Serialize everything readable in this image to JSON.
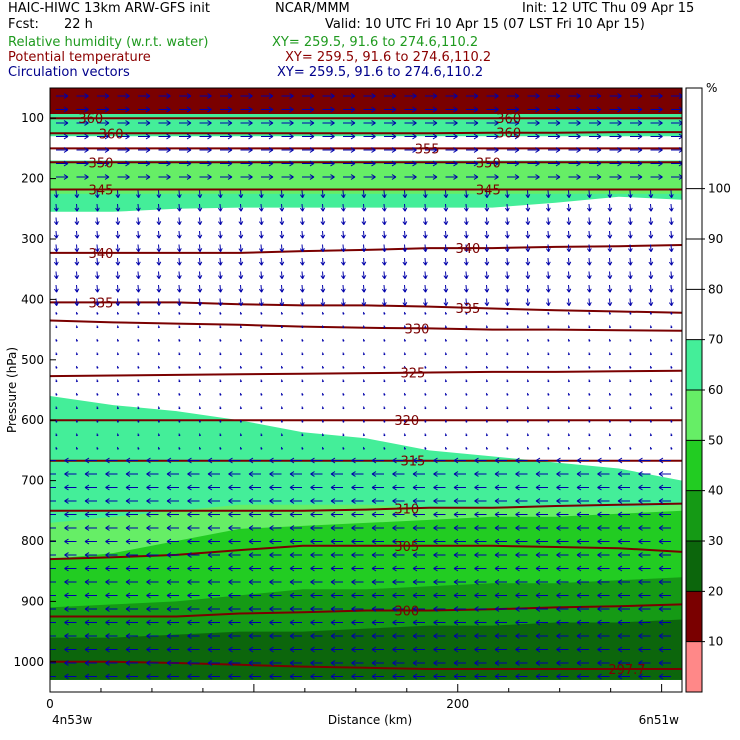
{
  "header": {
    "left1": "HAIC-HIWC 13km ARW-GFS init",
    "center1": "NCAR/MMM",
    "right1": "Init: 12 UTC Thu 09 Apr 15",
    "left2": "Fcst:",
    "left2b": "22 h",
    "right2": "Valid: 10 UTC Fri 10 Apr 15 (07 LST Fri 10 Apr 15)",
    "fields": [
      {
        "name": "Relative humidity (w.r.t. water)",
        "xy": "XY= 259.5, 91.6 to 274.6,110.2",
        "color": "#1f9a1f"
      },
      {
        "name": "Potential temperature",
        "xy": "XY= 259.5, 91.6 to 274.6,110.2",
        "color": "#8b0000"
      },
      {
        "name": "Circulation vectors",
        "xy": "XY= 259.5, 91.6 to 274.6,110.2",
        "color": "#00008b"
      }
    ]
  },
  "chart_data": {
    "type": "heatmap",
    "xlabel": "Distance (km)",
    "ylabel": "Pressure (hPa)",
    "xlim": [
      0,
      310
    ],
    "ylim": [
      1050,
      50
    ],
    "x_ticks": [
      0,
      200
    ],
    "y_ticks": [
      100,
      200,
      300,
      400,
      500,
      600,
      700,
      800,
      900,
      1000
    ],
    "x_endpoints": {
      "left": "4n53w",
      "right": "6n51w"
    },
    "colorbar": {
      "unit": "%",
      "levels": [
        10,
        20,
        30,
        40,
        50,
        60,
        70,
        80,
        90,
        100
      ],
      "colors": [
        "#ffffff",
        "#ffffff",
        "#ffffff",
        "#ffffff",
        "#ffffff",
        "#44ee99",
        "#66ee66",
        "#22cc22",
        "#159a15",
        "#0c660c",
        "#7a0000",
        "#ff8888"
      ]
    },
    "rh_bands": [
      {
        "color": "#7a0000",
        "top": [
          50,
          50,
          50,
          50,
          50,
          50,
          50,
          50,
          50,
          50,
          50
        ],
        "bottom": [
          93,
          93,
          93,
          93,
          93,
          93,
          93,
          93,
          93,
          93,
          93
        ]
      },
      {
        "color": "#44ee99",
        "top": [
          93,
          93,
          93,
          93,
          93,
          93,
          93,
          93,
          93,
          93,
          93
        ],
        "bottom": [
          130,
          130,
          130,
          130,
          130,
          130,
          130,
          130,
          130,
          130,
          130
        ]
      },
      {
        "color": "#44ee99",
        "top": [
          170,
          170,
          170,
          170,
          170,
          170,
          170,
          170,
          170,
          170,
          170
        ],
        "bottom": [
          255,
          255,
          250,
          248,
          248,
          248,
          248,
          248,
          240,
          230,
          235
        ]
      },
      {
        "color": "#66ee66",
        "top": [
          175,
          175,
          175,
          175,
          175,
          175,
          175,
          175,
          175,
          175,
          175
        ],
        "bottom": [
          225,
          225,
          225,
          225,
          225,
          225,
          225,
          225,
          225,
          225,
          225
        ]
      },
      {
        "color": "#44ee99",
        "top": [
          560,
          575,
          585,
          600,
          620,
          630,
          650,
          660,
          670,
          680,
          700
        ],
        "bottom": [
          1030,
          1030,
          1030,
          1030,
          1030,
          1030,
          1030,
          1030,
          1030,
          1030,
          1030
        ]
      },
      {
        "color": "#66ee66",
        "top": [
          770,
          760,
          750,
          740,
          740,
          740,
          745,
          745,
          745,
          745,
          740
        ],
        "bottom": [
          1030,
          1030,
          1030,
          1030,
          1030,
          1030,
          1030,
          1030,
          1030,
          1030,
          1030
        ]
      },
      {
        "color": "#22cc22",
        "top": [
          830,
          820,
          800,
          780,
          775,
          770,
          765,
          760,
          760,
          755,
          750
        ],
        "bottom": [
          1030,
          1030,
          1030,
          1030,
          1030,
          1030,
          1030,
          1030,
          1030,
          1030,
          1030
        ]
      },
      {
        "color": "#159a15",
        "top": [
          910,
          905,
          900,
          890,
          880,
          880,
          875,
          870,
          870,
          865,
          860
        ],
        "bottom": [
          1030,
          1030,
          1030,
          1030,
          1030,
          1030,
          1030,
          1030,
          1030,
          1030,
          1030
        ]
      },
      {
        "color": "#0c660c",
        "top": [
          960,
          960,
          955,
          950,
          950,
          945,
          940,
          940,
          935,
          935,
          930
        ],
        "bottom": [
          1030,
          1030,
          1030,
          1030,
          1030,
          1030,
          1030,
          1030,
          1030,
          1030,
          1030
        ]
      }
    ],
    "theta_contours": [
      {
        "value": "360",
        "p": [
          100,
          100,
          100,
          100,
          100,
          100,
          100,
          100,
          100,
          100,
          100
        ],
        "label_x": [
          20,
          225
        ]
      },
      {
        "value": "360",
        "p": [
          125,
          125,
          125,
          125,
          125,
          125,
          125,
          124,
          124,
          123,
          123
        ],
        "label_x": [
          30,
          225
        ]
      },
      {
        "value": "355",
        "p": [
          150,
          150,
          150,
          150,
          150,
          150,
          150,
          150,
          150,
          150,
          150
        ],
        "label_x": [
          185
        ]
      },
      {
        "value": "350",
        "p": [
          173,
          173,
          173,
          173,
          173,
          173,
          173,
          173,
          173,
          173,
          173
        ],
        "label_x": [
          25,
          215
        ]
      },
      {
        "value": "345",
        "p": [
          218,
          218,
          218,
          218,
          218,
          218,
          218,
          218,
          218,
          218,
          218
        ],
        "label_x": [
          25,
          215
        ]
      },
      {
        "value": "340",
        "p": [
          323,
          323,
          323,
          323,
          320,
          318,
          315,
          315,
          313,
          312,
          310
        ],
        "label_x": [
          25,
          205
        ]
      },
      {
        "value": "335",
        "p": [
          405,
          405,
          405,
          408,
          410,
          410,
          412,
          415,
          418,
          420,
          422
        ],
        "label_x": [
          25,
          205
        ]
      },
      {
        "value": "330",
        "p": [
          435,
          438,
          440,
          442,
          445,
          447,
          448,
          450,
          450,
          451,
          452
        ],
        "label_x": [
          180
        ]
      },
      {
        "value": "325",
        "p": [
          527,
          526,
          525,
          524,
          523,
          522,
          521,
          520,
          520,
          519,
          518
        ],
        "label_x": [
          178
        ]
      },
      {
        "value": "320",
        "p": [
          600,
          600,
          600,
          600,
          600,
          600,
          600,
          600,
          600,
          600,
          600
        ],
        "label_x": [
          175
        ]
      },
      {
        "value": "315",
        "p": [
          667,
          667,
          667,
          667,
          667,
          667,
          667,
          667,
          667,
          667,
          667
        ],
        "label_x": [
          178
        ]
      },
      {
        "value": "310",
        "p": [
          750,
          750,
          750,
          750,
          750,
          748,
          745,
          745,
          742,
          740,
          738
        ],
        "label_x": [
          175
        ]
      },
      {
        "value": "305",
        "p": [
          830,
          827,
          823,
          815,
          808,
          808,
          808,
          808,
          810,
          812,
          818
        ],
        "label_x": [
          175
        ]
      },
      {
        "value": "300",
        "p": [
          925,
          925,
          925,
          920,
          918,
          915,
          915,
          913,
          910,
          908,
          905
        ],
        "label_x": [
          175
        ]
      },
      {
        "value": "297.7",
        "p": [
          1000,
          1000,
          1002,
          1005,
          1008,
          1010,
          1012,
          1012,
          1012,
          1012,
          1012
        ],
        "label_x": [
          283
        ]
      }
    ],
    "vector_field": {
      "wind_layers": [
        {
          "p_top": 50,
          "p_bottom": 200,
          "u": 1,
          "w": 0
        },
        {
          "p_top": 200,
          "p_bottom": 400,
          "u": 0.05,
          "w": -0.6
        },
        {
          "p_top": 400,
          "p_bottom": 650,
          "u": 0.05,
          "w": -0.2
        },
        {
          "p_top": 650,
          "p_bottom": 1020,
          "u": -1,
          "w": 0
        }
      ]
    }
  }
}
